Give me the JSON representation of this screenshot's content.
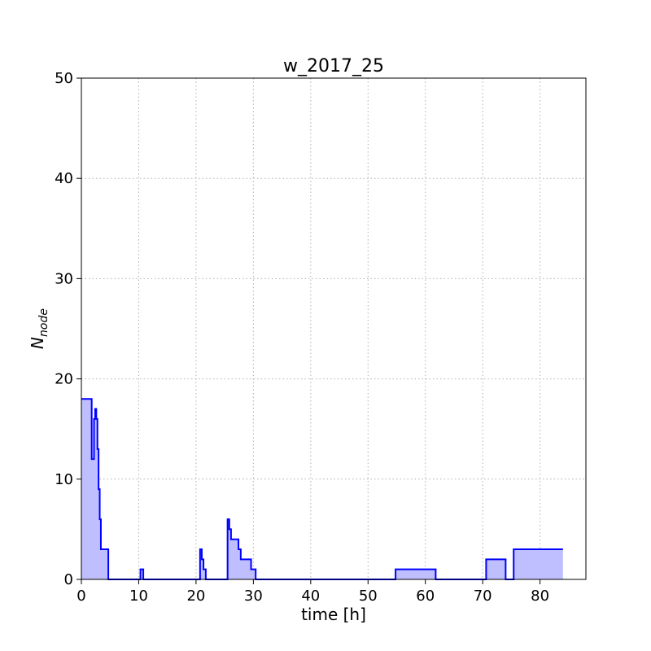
{
  "chart_data": {
    "type": "area",
    "title": "w_2017_25",
    "xlabel": "time [h]",
    "ylabel_main": "N",
    "ylabel_sub": "node",
    "xlim": [
      0,
      88
    ],
    "ylim": [
      0,
      50
    ],
    "xticks": [
      0,
      10,
      20,
      30,
      40,
      50,
      60,
      70,
      80
    ],
    "yticks": [
      0,
      10,
      20,
      30,
      40,
      50
    ],
    "grid": true,
    "step": "post",
    "line_color": "#0000ff",
    "fill_color": "#bfbfff",
    "x": [
      0,
      1.8,
      2.2,
      2.4,
      2.6,
      2.8,
      3.0,
      3.2,
      3.4,
      3.6,
      4.7,
      10.3,
      10.8,
      20.7,
      21.0,
      21.3,
      21.7,
      25.5,
      25.8,
      26.1,
      27.4,
      27.8,
      29.6,
      30.4,
      54.8,
      61.8,
      70.6,
      74.0,
      75.4,
      84.0
    ],
    "y": [
      18,
      12,
      16,
      17,
      16,
      13,
      9,
      6,
      3,
      3,
      0,
      1,
      0,
      3,
      2,
      1,
      0,
      6,
      5,
      4,
      3,
      2,
      1,
      0,
      1,
      0,
      2,
      0,
      3,
      3
    ]
  }
}
